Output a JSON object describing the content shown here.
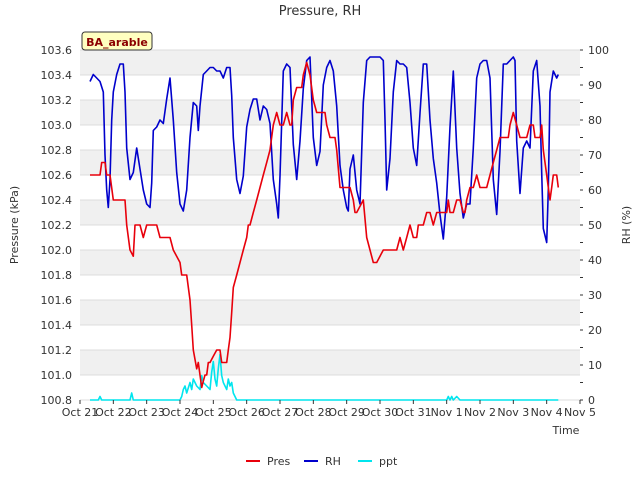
{
  "chart_data": {
    "type": "line",
    "title": "Pressure, RH",
    "site_label": "BA_arable",
    "xlabel": "Time",
    "ylabel_left": "Pressure (kPa)",
    "ylabel_right": "RH (%)",
    "x_ticks": [
      "Oct 21",
      "Oct 22",
      "Oct 23",
      "Oct 24",
      "Oct 25",
      "Oct 26",
      "Oct 27",
      "Oct 28",
      "Oct 29",
      "Oct 30",
      "Oct 31",
      "Nov 1",
      "Nov 2",
      "Nov 3",
      "Nov 4",
      "Nov 5"
    ],
    "xlim": [
      0,
      15
    ],
    "ylim_left": [
      100.8,
      103.6
    ],
    "ylim_right": [
      0,
      100
    ],
    "y_left_ticks": [
      "100.8",
      "101.0",
      "101.2",
      "101.4",
      "101.6",
      "101.8",
      "102.0",
      "102.2",
      "102.4",
      "102.6",
      "102.8",
      "103.0",
      "103.2",
      "103.4",
      "103.6"
    ],
    "y_right_ticks": [
      "0",
      "10",
      "20",
      "30",
      "40",
      "50",
      "60",
      "70",
      "80",
      "90",
      "100"
    ],
    "colors": {
      "Pres": "#e8000b",
      "RH": "#0000cc",
      "ppt": "#00e5ee",
      "band": "#f0f0f0",
      "label_bg": "#ffffc0",
      "label_text": "#8b0000"
    },
    "legend": [
      {
        "name": "Pres",
        "key": "Pres"
      },
      {
        "name": "RH",
        "key": "RH"
      },
      {
        "name": "ppt",
        "key": "ppt"
      }
    ],
    "series": [
      {
        "name": "Pres",
        "axis": "left",
        "x": [
          0.3,
          0.6,
          0.65,
          0.7,
          0.75,
          0.8,
          0.85,
          0.9,
          1.0,
          1.2,
          1.35,
          1.4,
          1.5,
          1.6,
          1.65,
          1.75,
          1.8,
          1.9,
          2.0,
          2.1,
          2.2,
          2.3,
          2.4,
          2.6,
          2.7,
          2.8,
          3.0,
          3.05,
          3.1,
          3.2,
          3.3,
          3.35,
          3.4,
          3.5,
          3.55,
          3.6,
          3.65,
          3.7,
          3.75,
          3.8,
          3.85,
          3.9,
          4.0,
          4.1,
          4.2,
          4.25,
          4.3,
          4.4,
          4.45,
          4.5,
          4.55,
          4.6,
          4.7,
          4.8,
          4.9,
          5.0,
          5.05,
          5.1,
          5.2,
          5.3,
          5.4,
          5.5,
          5.6,
          5.7,
          5.8,
          5.9,
          6.0,
          6.1,
          6.2,
          6.3,
          6.35,
          6.4,
          6.5,
          6.6,
          6.65,
          6.7,
          6.8,
          6.9,
          7.0,
          7.1,
          7.2,
          7.3,
          7.35,
          7.4,
          7.5,
          7.6,
          7.65,
          7.7,
          7.8,
          7.9,
          8.0,
          8.1,
          8.2,
          8.25,
          8.3,
          8.4,
          8.5,
          8.6,
          8.7,
          8.8,
          8.9,
          9.0,
          9.1,
          9.15,
          9.2,
          9.3,
          9.4,
          9.5,
          9.6,
          9.7,
          9.8,
          9.9,
          10.0,
          10.1,
          10.15,
          10.2,
          10.3,
          10.4,
          10.45,
          10.5,
          10.6,
          10.7,
          10.8,
          11.0,
          11.05,
          11.1,
          11.2,
          11.3,
          11.4,
          11.5,
          11.55,
          11.6,
          11.7,
          11.8,
          11.9,
          12.0,
          12.1,
          12.2,
          12.3,
          12.4,
          12.5,
          12.6,
          12.7,
          12.8,
          12.85,
          12.9,
          13.0,
          13.1,
          13.2,
          13.3,
          13.35,
          13.4,
          13.5,
          13.6,
          13.65,
          13.7,
          13.8,
          13.85,
          13.9,
          14.0,
          14.05,
          14.1,
          14.15,
          14.2,
          14.3,
          14.35
        ],
        "values": [
          102.6,
          102.6,
          102.7,
          102.7,
          102.7,
          102.6,
          102.6,
          102.6,
          102.4,
          102.4,
          102.4,
          102.2,
          102.0,
          101.95,
          102.2,
          102.2,
          102.2,
          102.1,
          102.2,
          102.2,
          102.2,
          102.2,
          102.1,
          102.1,
          102.1,
          102.0,
          101.9,
          101.8,
          101.8,
          101.8,
          101.6,
          101.4,
          101.2,
          101.05,
          101.1,
          101.0,
          100.9,
          100.95,
          101.0,
          101.0,
          101.1,
          101.1,
          101.15,
          101.2,
          101.2,
          101.1,
          101.1,
          101.1,
          101.2,
          101.3,
          101.5,
          101.7,
          101.8,
          101.9,
          102.0,
          102.1,
          102.2,
          102.2,
          102.3,
          102.4,
          102.5,
          102.6,
          102.7,
          102.8,
          103.0,
          103.1,
          103.0,
          103.0,
          103.1,
          103.0,
          103.0,
          103.2,
          103.3,
          103.3,
          103.3,
          103.4,
          103.5,
          103.4,
          103.2,
          103.1,
          103.1,
          103.1,
          103.1,
          103.0,
          102.9,
          102.9,
          102.9,
          102.8,
          102.5,
          102.5,
          102.5,
          102.5,
          102.4,
          102.3,
          102.3,
          102.35,
          102.4,
          102.1,
          102.0,
          101.9,
          101.9,
          101.95,
          102.0,
          102.0,
          102.0,
          102.0,
          102.0,
          102.0,
          102.1,
          102.0,
          102.1,
          102.2,
          102.1,
          102.1,
          102.2,
          102.2,
          102.2,
          102.3,
          102.3,
          102.3,
          102.2,
          102.3,
          102.3,
          102.3,
          102.4,
          102.3,
          102.3,
          102.4,
          102.4,
          102.3,
          102.3,
          102.4,
          102.5,
          102.5,
          102.6,
          102.5,
          102.5,
          102.5,
          102.6,
          102.7,
          102.8,
          102.9,
          102.9,
          102.9,
          102.9,
          103.0,
          103.1,
          103.0,
          102.9,
          102.9,
          102.9,
          102.9,
          103.0,
          103.0,
          102.9,
          102.9,
          102.9,
          103.0,
          102.8,
          102.6,
          102.5,
          102.4,
          102.5,
          102.6,
          102.6,
          102.5
        ]
      },
      {
        "name": "RH",
        "axis": "right",
        "x": [
          0.3,
          0.4,
          0.5,
          0.6,
          0.7,
          0.75,
          0.8,
          0.85,
          0.9,
          0.95,
          1.0,
          1.1,
          1.2,
          1.3,
          1.35,
          1.4,
          1.5,
          1.6,
          1.7,
          1.8,
          1.9,
          2.0,
          2.1,
          2.15,
          2.2,
          2.3,
          2.4,
          2.5,
          2.6,
          2.7,
          2.8,
          2.9,
          3.0,
          3.1,
          3.2,
          3.3,
          3.4,
          3.5,
          3.55,
          3.6,
          3.7,
          3.8,
          3.9,
          4.0,
          4.1,
          4.2,
          4.3,
          4.4,
          4.5,
          4.55,
          4.6,
          4.7,
          4.8,
          4.9,
          5.0,
          5.1,
          5.2,
          5.3,
          5.4,
          5.5,
          5.6,
          5.7,
          5.8,
          5.9,
          5.95,
          6.0,
          6.1,
          6.2,
          6.3,
          6.4,
          6.5,
          6.6,
          6.7,
          6.8,
          6.9,
          7.0,
          7.1,
          7.2,
          7.3,
          7.4,
          7.5,
          7.6,
          7.7,
          7.8,
          7.9,
          8.0,
          8.05,
          8.1,
          8.2,
          8.3,
          8.4,
          8.5,
          8.6,
          8.7,
          8.8,
          8.9,
          9.0,
          9.1,
          9.15,
          9.2,
          9.3,
          9.4,
          9.5,
          9.6,
          9.7,
          9.8,
          9.9,
          10.0,
          10.1,
          10.2,
          10.3,
          10.4,
          10.5,
          10.6,
          10.7,
          10.8,
          10.9,
          11.0,
          11.1,
          11.2,
          11.3,
          11.4,
          11.5,
          11.6,
          11.7,
          11.8,
          11.9,
          12.0,
          12.1,
          12.2,
          12.3,
          12.4,
          12.5,
          12.6,
          12.7,
          12.8,
          12.9,
          13.0,
          13.05,
          13.1,
          13.2,
          13.3,
          13.4,
          13.5,
          13.6,
          13.7,
          13.8,
          13.85,
          13.9,
          14.0,
          14.05,
          14.1,
          14.2,
          14.3,
          14.35
        ],
        "values": [
          91,
          93,
          92,
          91,
          88,
          70,
          60,
          55,
          63,
          80,
          88,
          93,
          96,
          96,
          88,
          72,
          63,
          65,
          72,
          66,
          60,
          56,
          55,
          62,
          77,
          78,
          80,
          79,
          86,
          92,
          80,
          65,
          56,
          54,
          60,
          75,
          85,
          84,
          77,
          84,
          93,
          94,
          95,
          95,
          94,
          94,
          92,
          95,
          95,
          87,
          75,
          63,
          59,
          64,
          78,
          83,
          86,
          86,
          80,
          84,
          83,
          79,
          63,
          56,
          52,
          64,
          94,
          96,
          95,
          73,
          63,
          74,
          89,
          97,
          98,
          75,
          67,
          71,
          90,
          95,
          97,
          94,
          84,
          67,
          60,
          55,
          54,
          66,
          70,
          60,
          56,
          85,
          97,
          98,
          98,
          98,
          98,
          97,
          80,
          60,
          69,
          88,
          97,
          96,
          96,
          95,
          85,
          72,
          67,
          82,
          96,
          96,
          80,
          69,
          62,
          53,
          46,
          58,
          78,
          94,
          72,
          59,
          52,
          56,
          56,
          72,
          92,
          96,
          97,
          97,
          92,
          63,
          53,
          71,
          96,
          96,
          97,
          98,
          97,
          74,
          59,
          72,
          74,
          72,
          94,
          97,
          84,
          65,
          49,
          45,
          60,
          88,
          94,
          92,
          93
        ]
      },
      {
        "name": "ppt",
        "axis": "right",
        "x": [
          0.3,
          0.55,
          0.6,
          0.65,
          1.0,
          1.5,
          1.55,
          1.6,
          1.65,
          2.0,
          2.5,
          3.0,
          3.05,
          3.1,
          3.15,
          3.2,
          3.3,
          3.35,
          3.4,
          3.5,
          3.6,
          3.65,
          3.7,
          3.8,
          3.9,
          3.95,
          4.0,
          4.05,
          4.1,
          4.15,
          4.2,
          4.25,
          4.3,
          4.4,
          4.45,
          4.5,
          4.55,
          4.6,
          4.7,
          5.0,
          6.0,
          7.0,
          8.0,
          9.0,
          10.0,
          10.5,
          11.0,
          11.05,
          11.1,
          11.15,
          11.2,
          11.3,
          11.4,
          11.5,
          11.6,
          12.0,
          13.0,
          14.0,
          14.35
        ],
        "values": [
          0,
          0,
          1,
          0,
          0,
          0,
          2,
          0,
          0,
          0,
          0,
          0,
          1,
          3,
          4,
          2,
          5,
          3,
          6,
          4,
          3,
          7,
          5,
          4,
          3,
          8,
          11,
          6,
          4,
          9,
          13,
          7,
          5,
          3,
          6,
          4,
          5,
          2,
          0,
          0,
          0,
          0,
          0,
          0,
          0,
          0,
          0,
          1,
          0,
          1,
          0,
          1,
          0,
          0,
          0,
          0,
          0,
          0,
          0
        ]
      }
    ]
  }
}
